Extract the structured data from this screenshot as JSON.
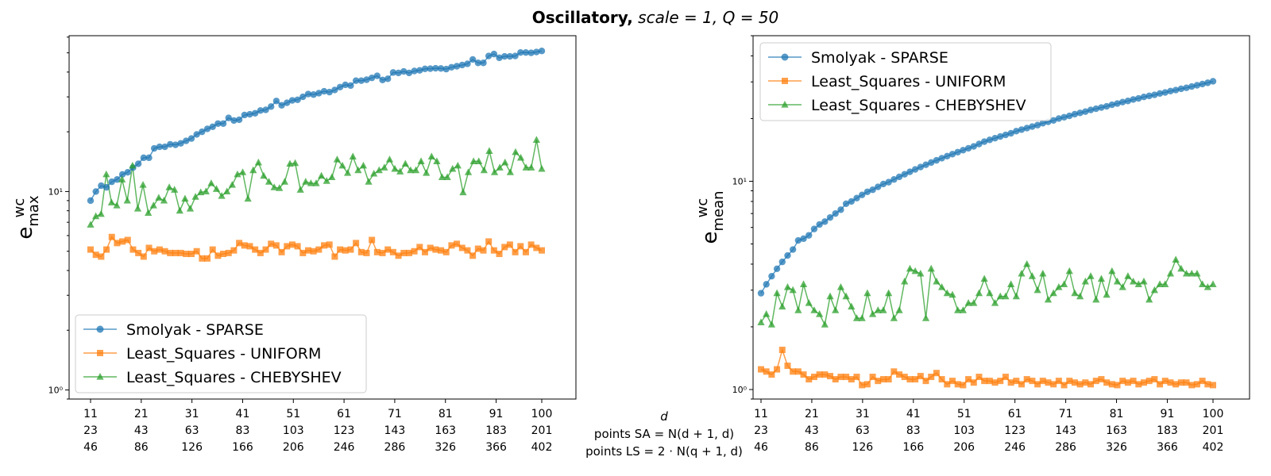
{
  "title": {
    "bold": "Oscillatory,",
    "math": " scale = 1, Q = 50"
  },
  "xaxis": {
    "var_label": "d",
    "sa_label": "points SA = N(d + 1, d)",
    "ls_label": "points LS = 2 · N(q + 1, d)",
    "ticks_d": [
      "11",
      "21",
      "31",
      "41",
      "51",
      "61",
      "71",
      "81",
      "91",
      "100"
    ],
    "ticks_sa": [
      "23",
      "43",
      "63",
      "83",
      "103",
      "123",
      "143",
      "163",
      "183",
      "201"
    ],
    "ticks_ls": [
      "46",
      "86",
      "126",
      "166",
      "206",
      "246",
      "286",
      "326",
      "366",
      "402"
    ]
  },
  "colors": {
    "smolyak": "#1f77b4",
    "uniform": "#ff7f0e",
    "chebyshev": "#2ca02c"
  },
  "chart_data": [
    {
      "type": "line",
      "yscale": "log",
      "ylabel": "e_max^wc",
      "ylabel_base": "e",
      "ylabel_sup": "wc",
      "ylabel_sub": "max",
      "yticks": [
        "10⁰",
        "10¹"
      ],
      "ylim": [
        0.9,
        61
      ],
      "x_range": [
        11,
        100
      ],
      "legend_position": "lower-left",
      "grid": false,
      "series": [
        {
          "name": "Smolyak - SPARSE",
          "marker": "circle",
          "color": "#1f77b4",
          "values": [
            9,
            10,
            10.7,
            10.5,
            11.2,
            11.5,
            12.2,
            12.5,
            13.2,
            13.8,
            14.8,
            14.8,
            16.5,
            16.8,
            16.8,
            17.3,
            17.2,
            17.5,
            18,
            18.5,
            19.4,
            20,
            20.7,
            21.2,
            22,
            22,
            23.5,
            22.8,
            23,
            24.3,
            24.5,
            24.8,
            25.6,
            25.8,
            26.8,
            28.6,
            27.2,
            28,
            28.8,
            29,
            30,
            31,
            30.8,
            31.3,
            32,
            31.7,
            32.5,
            33.6,
            34.5,
            34.2,
            36.2,
            36.2,
            36.6,
            37.4,
            38.3,
            36.5,
            37,
            39.8,
            39.6,
            40.3,
            39.6,
            40.5,
            40.8,
            41.5,
            41.6,
            41.8,
            41.7,
            41.4,
            42.3,
            42.8,
            43.4,
            44,
            46.3,
            44.5,
            44.5,
            48.2,
            49.3,
            47.2,
            48,
            48,
            48.2,
            50.2,
            50.2,
            50,
            50.5,
            51.1
          ]
        },
        {
          "name": "Least_Squares - UNIFORM",
          "marker": "square",
          "color": "#ff7f0e",
          "values": [
            5.1,
            4.8,
            4.7,
            5.1,
            5.9,
            5.5,
            5.6,
            5.7,
            5.1,
            4.9,
            4.7,
            5.2,
            5,
            5.1,
            5,
            4.9,
            4.9,
            4.9,
            4.85,
            4.85,
            5,
            4.6,
            4.6,
            5.1,
            4.75,
            4.85,
            4.9,
            5.05,
            5.5,
            5.35,
            5.3,
            5.1,
            4.9,
            5.1,
            5.45,
            5.35,
            4.95,
            5.3,
            5.4,
            5.3,
            4.9,
            5.05,
            5,
            5.1,
            5.35,
            5.4,
            4.7,
            5.1,
            5.05,
            5.1,
            5.5,
            4.95,
            4.9,
            5.7,
            4.95,
            4.9,
            5.1,
            4.95,
            4.75,
            4.9,
            4.9,
            5,
            5.25,
            4.95,
            5.2,
            5.1,
            5.05,
            4.95,
            5.35,
            5.45,
            5.2,
            5.05,
            4.75,
            5.15,
            5.05,
            5.6,
            5.05,
            4.85,
            5.25,
            5.4,
            4.95,
            5.3,
            4.95,
            5.4,
            5.2,
            5.05
          ]
        },
        {
          "name": "Least_Squares - CHEBYSHEV",
          "marker": "triangle",
          "color": "#2ca02c",
          "values": [
            6.8,
            7.5,
            7.7,
            12.2,
            8.8,
            8.5,
            11.5,
            9,
            13.5,
            8.2,
            10.8,
            7.8,
            8.5,
            9.3,
            9,
            10.5,
            10.2,
            8,
            9.2,
            8.2,
            9.4,
            9.9,
            10,
            11,
            10.3,
            9.5,
            10,
            10.8,
            12.2,
            12.5,
            9.2,
            12.8,
            14,
            12,
            11.2,
            10.5,
            10.4,
            11.2,
            13.8,
            13.9,
            10.2,
            11.2,
            11,
            11,
            12,
            11.3,
            11.8,
            14.5,
            13.5,
            12.4,
            15,
            12.8,
            13.5,
            11.2,
            12.3,
            12.8,
            13.2,
            14.5,
            13,
            12.6,
            13.8,
            12.8,
            12.8,
            14.2,
            12.4,
            15,
            14.2,
            11.8,
            11.8,
            13,
            13.5,
            9.9,
            12.5,
            14.2,
            14.2,
            12.8,
            16,
            12.5,
            13.2,
            14,
            12.5,
            15.8,
            14.8,
            13.2,
            13.2,
            18.2,
            13
          ]
        }
      ]
    },
    {
      "type": "line",
      "yscale": "log",
      "ylabel": "e_mean^wc",
      "ylabel_base": "e",
      "ylabel_sup": "wc",
      "ylabel_sub": "mean",
      "yticks": [
        "10⁰",
        "10¹"
      ],
      "ylim": [
        0.9,
        50
      ],
      "x_range": [
        11,
        100
      ],
      "legend_position": "upper-left",
      "grid": false,
      "series": [
        {
          "name": "Smolyak - SPARSE",
          "marker": "circle",
          "color": "#1f77b4",
          "values": [
            2.9,
            3.2,
            3.5,
            3.8,
            4.1,
            4.4,
            4.7,
            5.2,
            5.3,
            5.5,
            5.9,
            6.2,
            6.4,
            6.7,
            7,
            7.3,
            7.8,
            8,
            8.3,
            8.6,
            8.9,
            9.1,
            9.4,
            9.7,
            9.9,
            10.2,
            10.5,
            10.8,
            11.1,
            11.4,
            11.7,
            12,
            12.3,
            12.6,
            12.9,
            13.2,
            13.5,
            13.8,
            14.1,
            14.4,
            14.7,
            15.1,
            15.5,
            15.8,
            16.1,
            16.4,
            16.7,
            17,
            17.4,
            17.7,
            18,
            18.3,
            18.6,
            19,
            19.3,
            19.6,
            20,
            20.3,
            20.6,
            21,
            21.3,
            21.6,
            22,
            22.3,
            22.6,
            22.9,
            23.3,
            23.6,
            24,
            24.3,
            24.7,
            25,
            25.4,
            25.7,
            26,
            26.4,
            26.7,
            27.1,
            27.4,
            27.8,
            28.1,
            28.5,
            28.9,
            29.3,
            29.7,
            30.2
          ]
        },
        {
          "name": "Least_Squares - UNIFORM",
          "marker": "square",
          "color": "#ff7f0e",
          "values": [
            1.25,
            1.22,
            1.18,
            1.25,
            1.55,
            1.3,
            1.22,
            1.22,
            1.18,
            1.12,
            1.15,
            1.18,
            1.18,
            1.16,
            1.12,
            1.15,
            1.15,
            1.12,
            1.15,
            1.05,
            1.06,
            1.15,
            1.1,
            1.12,
            1.12,
            1.22,
            1.18,
            1.15,
            1.12,
            1.12,
            1.16,
            1.1,
            1.15,
            1.2,
            1.12,
            1.06,
            1.1,
            1.06,
            1.05,
            1.12,
            1.08,
            1.15,
            1.1,
            1.1,
            1.08,
            1.1,
            1.15,
            1.08,
            1.1,
            1.06,
            1.12,
            1.1,
            1.06,
            1.1,
            1.08,
            1.06,
            1.1,
            1.05,
            1.1,
            1.08,
            1.06,
            1.08,
            1.06,
            1.1,
            1.12,
            1.08,
            1.06,
            1.05,
            1.1,
            1.08,
            1.1,
            1.06,
            1.08,
            1.1,
            1.12,
            1.06,
            1.1,
            1.08,
            1.06,
            1.08,
            1.08,
            1.05,
            1.06,
            1.1,
            1.06,
            1.05
          ]
        },
        {
          "name": "Least_Squares - CHEBYSHEV",
          "marker": "triangle",
          "color": "#2ca02c",
          "values": [
            2.1,
            2.3,
            2.05,
            2.9,
            2.5,
            3.1,
            3,
            2.4,
            3.2,
            2.6,
            2.4,
            2.3,
            2.05,
            2.8,
            2.4,
            3.1,
            2.8,
            2.5,
            2.2,
            2.2,
            2.9,
            2.3,
            2.4,
            2.4,
            2.9,
            2.2,
            2.4,
            3.3,
            3.8,
            3.7,
            3.6,
            2.2,
            3.8,
            3.3,
            3.1,
            2.9,
            2.85,
            2.4,
            2.4,
            2.6,
            2.6,
            2.9,
            3.4,
            2.9,
            2.6,
            2.8,
            2.8,
            3.2,
            2.8,
            3.6,
            4,
            3.5,
            3,
            3.6,
            2.7,
            2.9,
            3.1,
            3.2,
            3.7,
            2.9,
            2.8,
            3.3,
            3.5,
            2.7,
            3.4,
            2.85,
            3.7,
            3.3,
            3.1,
            3.5,
            3.3,
            3.2,
            3.3,
            2.7,
            3,
            3.2,
            3.2,
            3.6,
            4.2,
            3.8,
            3.6,
            3.6,
            3.6,
            3.2,
            3.1,
            3.2
          ]
        }
      ]
    }
  ]
}
